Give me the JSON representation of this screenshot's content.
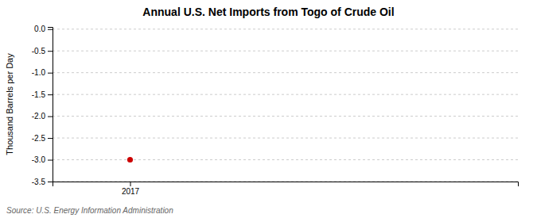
{
  "chart_data": {
    "type": "scatter",
    "title": "Annual U.S. Net Imports from Togo of Crude Oil",
    "y_label": "Thousand Barrels per Day",
    "annotations": [
      "Source: U.S. Energy Information Administration"
    ],
    "x": [
      2017
    ],
    "values": [
      -3.0
    ],
    "color": "#cc0000",
    "marker": "circle",
    "xlim": [
      2016.7,
      2018.5
    ],
    "xticks": [
      2017
    ],
    "ylim": [
      -3.5,
      0.05
    ],
    "yticks": [
      {
        "value": 0.0,
        "label": "0.0"
      },
      {
        "value": -0.5,
        "label": "-0.5"
      },
      {
        "value": -1.0,
        "label": "-1.0"
      },
      {
        "value": -1.5,
        "label": "-1.5"
      },
      {
        "value": -2.0,
        "label": "-2.0"
      },
      {
        "value": -2.5,
        "label": "-2.5"
      },
      {
        "value": -3.0,
        "label": "-3.0"
      },
      {
        "value": -3.5,
        "label": "-3.5"
      }
    ],
    "grid": true
  }
}
